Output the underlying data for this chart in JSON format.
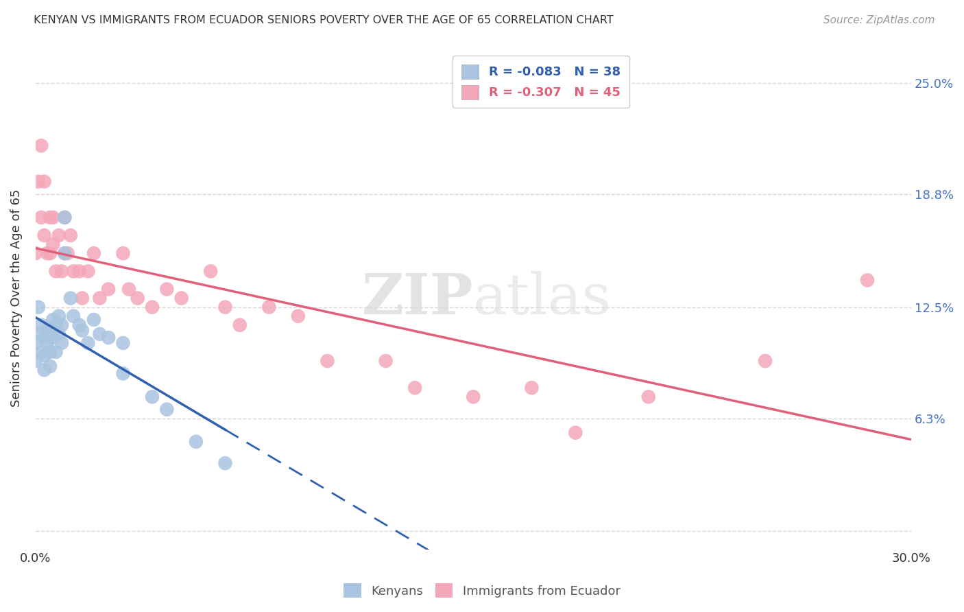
{
  "title": "KENYAN VS IMMIGRANTS FROM ECUADOR SENIORS POVERTY OVER THE AGE OF 65 CORRELATION CHART",
  "source": "Source: ZipAtlas.com",
  "ylabel": "Seniors Poverty Over the Age of 65",
  "xlim": [
    0.0,
    0.3
  ],
  "ylim": [
    -0.01,
    0.27
  ],
  "xticks": [
    0.0,
    0.05,
    0.1,
    0.15,
    0.2,
    0.25,
    0.3
  ],
  "xticklabels": [
    "0.0%",
    "",
    "",
    "",
    "",
    "",
    "30.0%"
  ],
  "ytick_positions": [
    0.0,
    0.063,
    0.125,
    0.188,
    0.25
  ],
  "ytick_labels": [
    "",
    "6.3%",
    "12.5%",
    "18.8%",
    "25.0%"
  ],
  "legend_r_kenya": "-0.083",
  "legend_n_kenya": "38",
  "legend_r_ecuador": "-0.307",
  "legend_n_ecuador": "45",
  "kenya_color": "#a8c4e0",
  "ecuador_color": "#f4a7b9",
  "kenya_line_color": "#3060b0",
  "ecuador_line_color": "#e0607a",
  "kenya_x": [
    0.0,
    0.0,
    0.001,
    0.001,
    0.002,
    0.002,
    0.003,
    0.003,
    0.003,
    0.004,
    0.004,
    0.005,
    0.005,
    0.005,
    0.006,
    0.006,
    0.007,
    0.007,
    0.008,
    0.008,
    0.009,
    0.009,
    0.01,
    0.01,
    0.012,
    0.013,
    0.015,
    0.016,
    0.018,
    0.02,
    0.022,
    0.025,
    0.03,
    0.03,
    0.04,
    0.045,
    0.055,
    0.065
  ],
  "kenya_y": [
    0.105,
    0.095,
    0.125,
    0.11,
    0.115,
    0.1,
    0.108,
    0.098,
    0.09,
    0.112,
    0.105,
    0.11,
    0.1,
    0.092,
    0.118,
    0.108,
    0.115,
    0.1,
    0.12,
    0.11,
    0.115,
    0.105,
    0.175,
    0.155,
    0.13,
    0.12,
    0.115,
    0.112,
    0.105,
    0.118,
    0.11,
    0.108,
    0.105,
    0.088,
    0.075,
    0.068,
    0.05,
    0.038
  ],
  "ecuador_x": [
    0.0,
    0.001,
    0.002,
    0.002,
    0.003,
    0.003,
    0.004,
    0.005,
    0.005,
    0.006,
    0.006,
    0.007,
    0.008,
    0.009,
    0.01,
    0.01,
    0.011,
    0.012,
    0.013,
    0.015,
    0.016,
    0.018,
    0.02,
    0.022,
    0.025,
    0.03,
    0.032,
    0.035,
    0.04,
    0.045,
    0.05,
    0.06,
    0.065,
    0.07,
    0.08,
    0.09,
    0.1,
    0.12,
    0.13,
    0.15,
    0.17,
    0.185,
    0.21,
    0.25,
    0.285
  ],
  "ecuador_y": [
    0.155,
    0.195,
    0.215,
    0.175,
    0.195,
    0.165,
    0.155,
    0.175,
    0.155,
    0.175,
    0.16,
    0.145,
    0.165,
    0.145,
    0.175,
    0.155,
    0.155,
    0.165,
    0.145,
    0.145,
    0.13,
    0.145,
    0.155,
    0.13,
    0.135,
    0.155,
    0.135,
    0.13,
    0.125,
    0.135,
    0.13,
    0.145,
    0.125,
    0.115,
    0.125,
    0.12,
    0.095,
    0.095,
    0.08,
    0.075,
    0.08,
    0.055,
    0.075,
    0.095,
    0.14
  ],
  "watermark_zip": "ZIP",
  "watermark_atlas": "atlas",
  "background_color": "#ffffff",
  "grid_color": "#cccccc"
}
